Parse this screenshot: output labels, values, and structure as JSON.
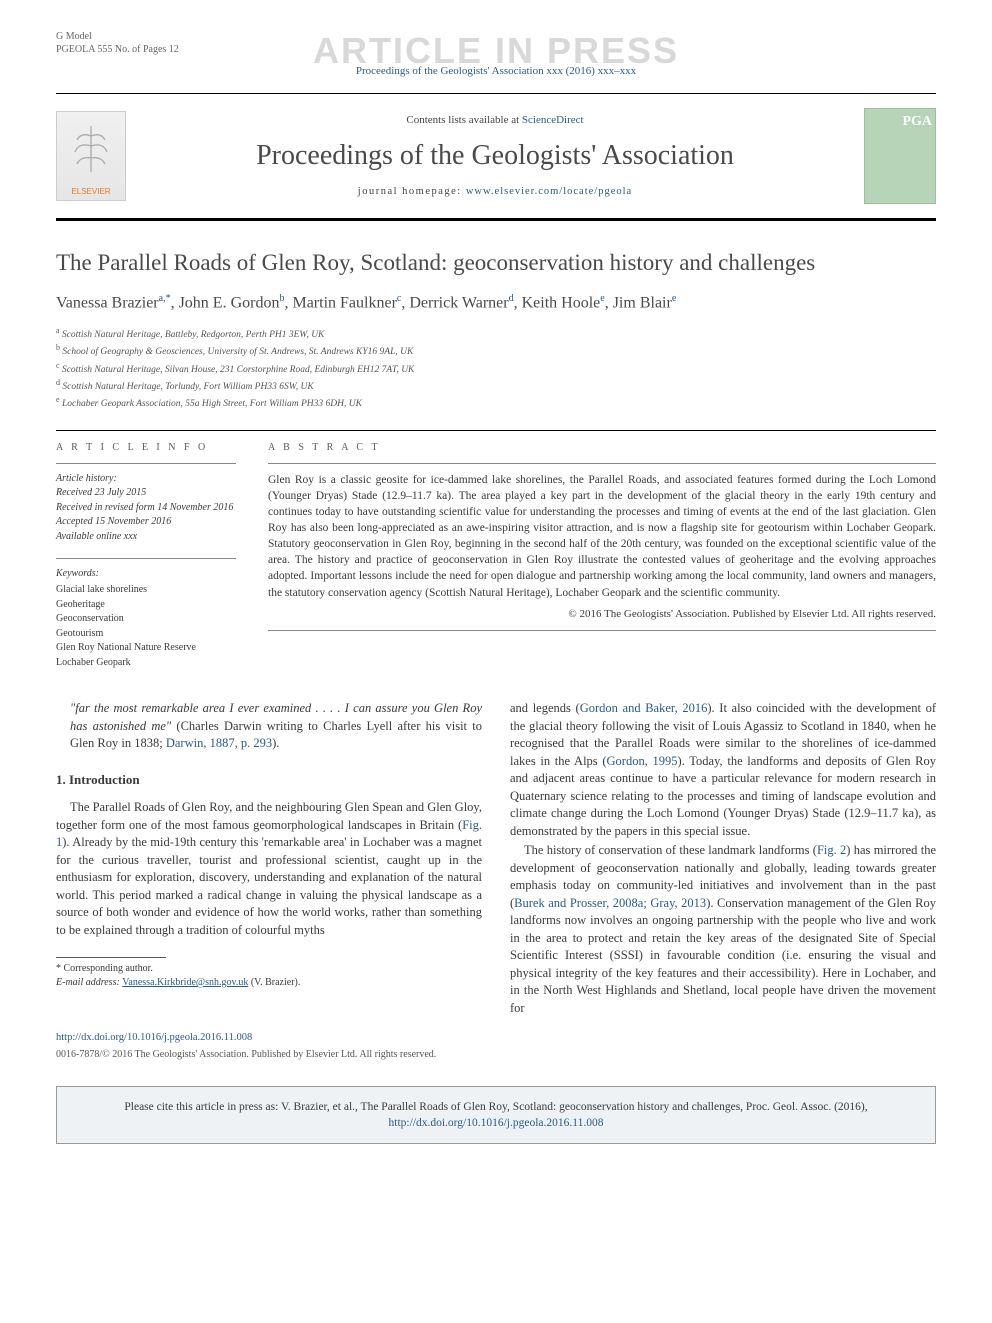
{
  "header": {
    "gmodel_line1": "G Model",
    "gmodel_line2": "PGEOLA 555 No. of Pages 12",
    "watermark": "ARTICLE IN PRESS",
    "journal_ref": "Proceedings of the Geologists' Association xxx (2016) xxx–xxx"
  },
  "masthead": {
    "elsevier": "ELSEVIER",
    "contents_prefix": "Contents lists available at ",
    "contents_link": "ScienceDirect",
    "journal_title": "Proceedings of the Geologists' Association",
    "homepage_prefix": "journal homepage: ",
    "homepage_link": "www.elsevier.com/locate/pgeola",
    "cover_initials": "PGA"
  },
  "article": {
    "title": "The Parallel Roads of Glen Roy, Scotland: geoconservation history and challenges",
    "authors_html": "Vanessa Brazier<sup>a,*</sup>, John E. Gordon<sup>b</sup>, Martin Faulkner<sup>c</sup>, Derrick Warner<sup>d</sup>, Keith Hoole<sup>e</sup>, Jim Blair<sup>e</sup>",
    "affiliations": [
      {
        "sup": "a",
        "text": "Scottish Natural Heritage, Battleby, Redgorton, Perth PH1 3EW, UK"
      },
      {
        "sup": "b",
        "text": "School of Geography & Geosciences, University of St. Andrews, St. Andrews KY16 9AL, UK"
      },
      {
        "sup": "c",
        "text": "Scottish Natural Heritage, Silvan House, 231 Corstorphine Road, Edinburgh EH12 7AT, UK"
      },
      {
        "sup": "d",
        "text": "Scottish Natural Heritage, Torlundy, Fort William PH33 6SW, UK"
      },
      {
        "sup": "e",
        "text": "Lochaber Geopark Association, 55a High Street, Fort William PH33 6DH, UK"
      }
    ]
  },
  "info": {
    "article_info_label": "A R T I C L E   I N F O",
    "abstract_label": "A B S T R A C T",
    "history_label": "Article history:",
    "history": [
      "Received 23 July 2015",
      "Received in revised form 14 November 2016",
      "Accepted 15 November 2016",
      "Available online xxx"
    ],
    "keywords_label": "Keywords:",
    "keywords": [
      "Glacial lake shorelines",
      "Geoheritage",
      "Geoconservation",
      "Geotourism",
      "Glen Roy National Nature Reserve",
      "Lochaber Geopark"
    ],
    "abstract": "Glen Roy is a classic geosite for ice-dammed lake shorelines, the Parallel Roads, and associated features formed during the Loch Lomond (Younger Dryas) Stade (12.9–11.7 ka). The area played a key part in the development of the glacial theory in the early 19th century and continues today to have outstanding scientific value for understanding the processes and timing of events at the end of the last glaciation. Glen Roy has also been long-appreciated as an awe-inspiring visitor attraction, and is now a flagship site for geotourism within Lochaber Geopark. Statutory geoconservation in Glen Roy, beginning in the second half of the 20th century, was founded on the exceptional scientific value of the area. The history and practice of geoconservation in Glen Roy illustrate the contested values of geoheritage and the evolving approaches adopted. Important lessons include the need for open dialogue and partnership working among the local community, land owners and managers, the statutory conservation agency (Scottish Natural Heritage), Lochaber Geopark and the scientific community.",
    "copyright": "© 2016 The Geologists' Association. Published by Elsevier Ltd. All rights reserved."
  },
  "body": {
    "quote": "\"far the most remarkable area I ever examined . . . . I can assure you Glen Roy has astonished me\"",
    "quote_attr_pre": " (Charles Darwin writing to Charles Lyell after his visit to Glen Roy in 1838; ",
    "quote_ref": "Darwin, 1887, p. 293",
    "quote_attr_post": ").",
    "intro_heading": "1. Introduction",
    "left_p1": "The Parallel Roads of Glen Roy, and the neighbouring Glen Spean and Glen Gloy, together form one of the most famous geomorphological landscapes in Britain (",
    "left_p1_ref": "Fig. 1",
    "left_p1b": "). Already by the mid-19th century this 'remarkable area' in Lochaber was a magnet for the curious traveller, tourist and professional scientist, caught up in the enthusiasm for exploration, discovery, understanding and explanation of the natural world. This period marked a radical change in valuing the physical landscape as a source of both wonder and evidence of how the world works, rather than something to be explained through a tradition of colourful myths",
    "right_p1a": "and legends (",
    "right_p1_ref1": "Gordon and Baker, 2016",
    "right_p1b": "). It also coincided with the development of the glacial theory following the visit of Louis Agassiz to Scotland in 1840, when he recognised that the Parallel Roads were similar to the shorelines of ice-dammed lakes in the Alps (",
    "right_p1_ref2": "Gordon, 1995",
    "right_p1c": "). Today, the landforms and deposits of Glen Roy and adjacent areas continue to have a particular relevance for modern research in Quaternary science relating to the processes and timing of landscape evolution and climate change during the Loch Lomond (Younger Dryas) Stade (12.9–11.7 ka), as demonstrated by the papers in this special issue.",
    "right_p2a": "The history of conservation of these landmark landforms (",
    "right_p2_ref1": "Fig. 2",
    "right_p2b": ") has mirrored the development of geoconservation nationally and globally, leading towards greater emphasis today on community-led initiatives and involvement than in the past (",
    "right_p2_ref2": "Burek and Prosser, 2008a; Gray, 2013",
    "right_p2c": "). Conservation management of the Glen Roy landforms now involves an ongoing partnership with the people who live and work in the area to protect and retain the key areas of the designated Site of Special Scientific Interest (SSSI) in favourable condition (i.e. ensuring the visual and physical integrity of the key features and their accessibility). Here in Lochaber, and in the North West Highlands and Shetland, local people have driven the movement for"
  },
  "footer": {
    "corr_label": "* Corresponding author.",
    "email_label": "E-mail address: ",
    "email": "Vanessa.Kirkbride@snh.gov.uk",
    "email_suffix": " (V. Brazier).",
    "doi": "http://dx.doi.org/10.1016/j.pgeola.2016.11.008",
    "issn": "0016-7878/© 2016 The Geologists' Association. Published by Elsevier Ltd. All rights reserved.",
    "cite_pre": "Please cite this article in press as: V. Brazier, et al., The Parallel Roads of Glen Roy, Scotland: geoconservation history and challenges, Proc. Geol. Assoc. (2016), ",
    "cite_link": "http://dx.doi.org/10.1016/j.pgeola.2016.11.008"
  },
  "colors": {
    "link": "#2a5a8a",
    "watermark": "#d8d8d8",
    "elsevier": "#e67a1f",
    "cover": "#b8d4b8",
    "citebox_bg": "#eef2f4"
  }
}
